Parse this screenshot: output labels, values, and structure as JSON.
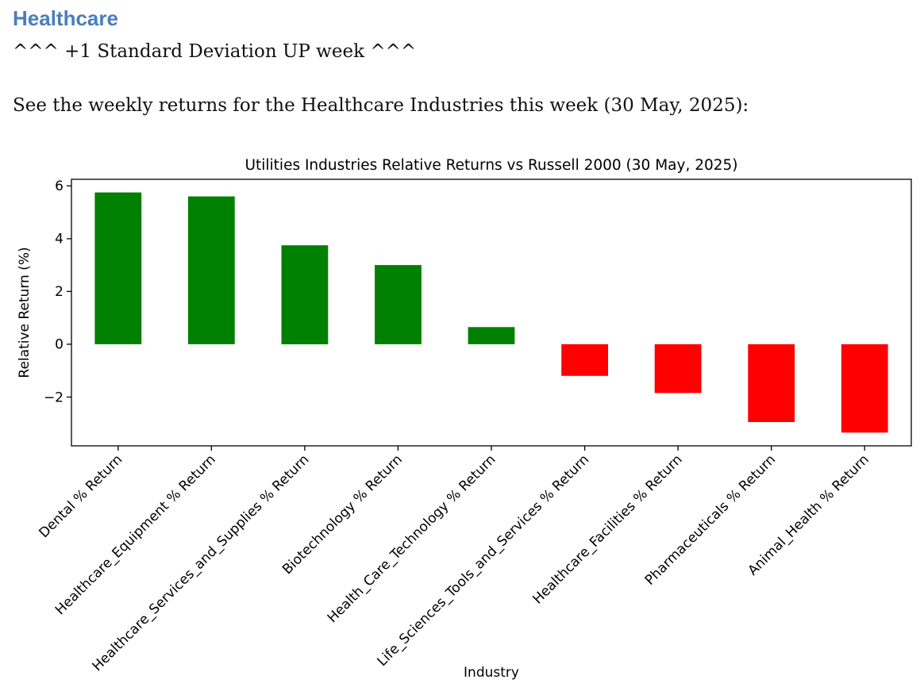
{
  "document": {
    "heading": "Healthcare",
    "heading_color": "#4a7ebb",
    "subheading": "^^^ +1 Standard Deviation UP week ^^^",
    "intro": "See the weekly returns for the Healthcare Industries this week (30 May, 2025):"
  },
  "chart_data": {
    "type": "bar",
    "title": "Utilities Industries Relative Returns vs Russell 2000 (30 May, 2025)",
    "xlabel": "Industry",
    "ylabel": "Relative Return (%)",
    "categories": [
      "Dental % Return",
      "Healthcare_Equipment % Return",
      "Healthcare_Services_and_Supplies % Return",
      "Biotechnology % Return",
      "Health_Care_Technology % Return",
      "Life_Sciences_Tools_and_Services % Return",
      "Healthcare_Facilities % Return",
      "Pharmaceuticals % Return",
      "Animal_Health % Return"
    ],
    "values": [
      5.75,
      5.6,
      3.75,
      3.0,
      0.65,
      -1.2,
      -1.85,
      -2.95,
      -3.35
    ],
    "positive_color": "#008000",
    "negative_color": "#ff0000",
    "axis_color": "#000000",
    "yticks": [
      6,
      4,
      2,
      0,
      -2
    ],
    "ylim": [
      -3.85,
      6.25
    ],
    "grid": false,
    "legend": false,
    "x_label_rotation_deg": 45
  }
}
